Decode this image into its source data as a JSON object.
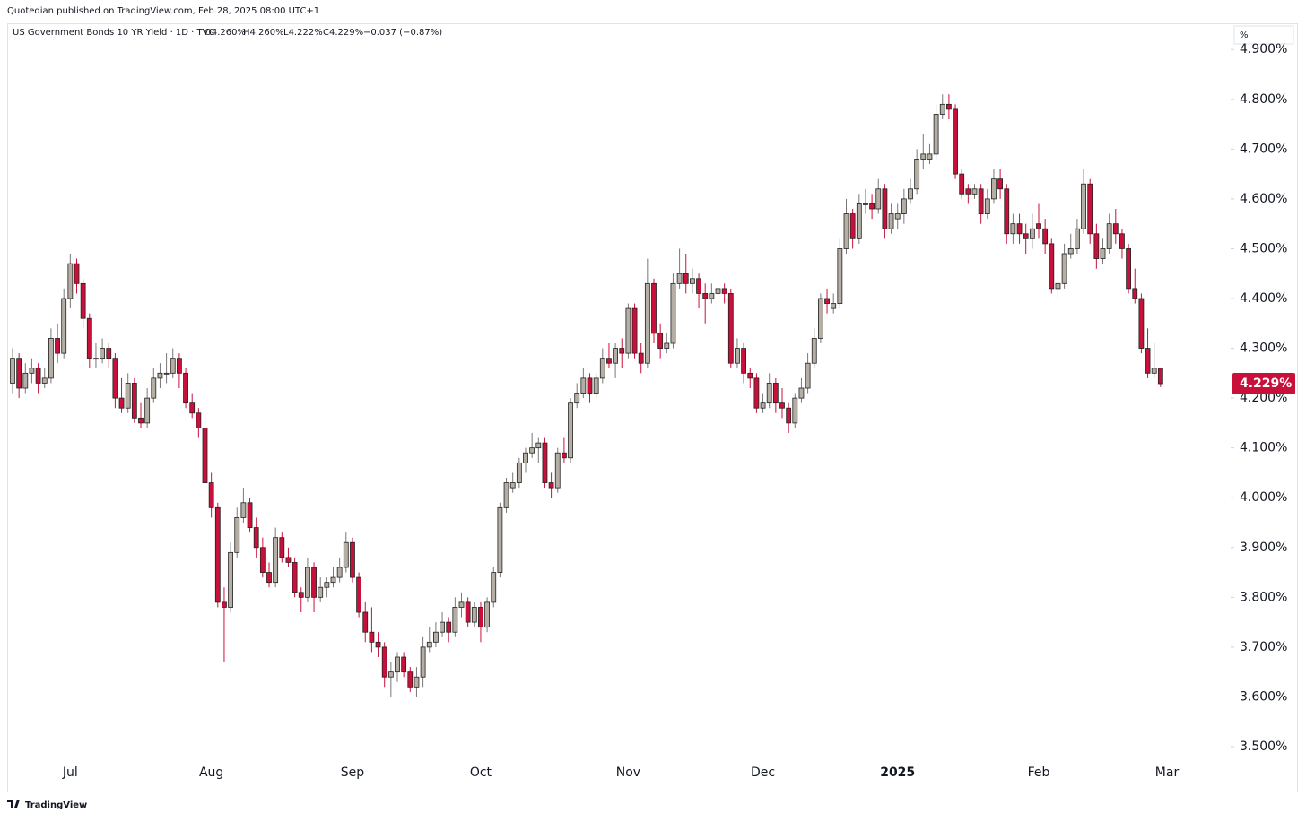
{
  "header": {
    "publisher": "Quotedian published on TradingView.com, Feb 28, 2025 08:00 UTC+1",
    "footer": "TradingView"
  },
  "chart_data": {
    "type": "candlestick",
    "legend": {
      "symbol": "US Government Bonds 10 YR Yield · 1D · TVC",
      "open": "O4.260%",
      "high": "H4.260%",
      "low": "L4.222%",
      "close": "C4.229%",
      "change": "−0.037 (−0.87%)"
    },
    "axis_unit": "%",
    "up_color": "#b5aea4",
    "down_color": "#c8103a",
    "border_color": "#222222",
    "ylim": [
      3.473,
      4.949
    ],
    "yticks": [
      {
        "value": 3.5,
        "label": "3.500%"
      },
      {
        "value": 3.6,
        "label": "3.600%"
      },
      {
        "value": 3.7,
        "label": "3.700%"
      },
      {
        "value": 3.8,
        "label": "3.800%"
      },
      {
        "value": 3.9,
        "label": "3.900%"
      },
      {
        "value": 4.0,
        "label": "4.000%"
      },
      {
        "value": 4.1,
        "label": "4.100%"
      },
      {
        "value": 4.2,
        "label": "4.200%"
      },
      {
        "value": 4.3,
        "label": "4.300%"
      },
      {
        "value": 4.4,
        "label": "4.400%"
      },
      {
        "value": 4.5,
        "label": "4.500%"
      },
      {
        "value": 4.6,
        "label": "4.600%"
      },
      {
        "value": 4.7,
        "label": "4.700%"
      },
      {
        "value": 4.8,
        "label": "4.800%"
      },
      {
        "value": 4.9,
        "label": "4.900%"
      }
    ],
    "last_price": {
      "value": 4.229,
      "label": "4.229%"
    },
    "categories": [
      null,
      null,
      null,
      null,
      null,
      null,
      null,
      null,
      null,
      "Jul",
      null,
      null,
      null,
      null,
      null,
      null,
      null,
      null,
      null,
      null,
      null,
      null,
      null,
      null,
      null,
      null,
      null,
      null,
      null,
      null,
      null,
      "Aug",
      null,
      null,
      null,
      null,
      null,
      null,
      null,
      null,
      null,
      null,
      null,
      null,
      null,
      null,
      null,
      null,
      null,
      null,
      null,
      null,
      null,
      "Sep",
      null,
      null,
      null,
      null,
      null,
      null,
      null,
      null,
      null,
      null,
      null,
      null,
      null,
      null,
      null,
      null,
      null,
      null,
      null,
      "Oct",
      null,
      null,
      null,
      null,
      null,
      null,
      null,
      null,
      null,
      null,
      null,
      null,
      null,
      null,
      null,
      null,
      null,
      null,
      null,
      null,
      null,
      null,
      "Nov",
      null,
      null,
      null,
      null,
      null,
      null,
      null,
      null,
      null,
      null,
      null,
      null,
      null,
      null,
      null,
      null,
      null,
      null,
      null,
      null,
      "Dec",
      null,
      null,
      null,
      null,
      null,
      null,
      null,
      null,
      null,
      null,
      null,
      null,
      null,
      null,
      null,
      null,
      null,
      null,
      null,
      null,
      "2025",
      null,
      null,
      null,
      null,
      null,
      null,
      null,
      null,
      null,
      null,
      null,
      null,
      null,
      null,
      null,
      null,
      null,
      null,
      null,
      null,
      null,
      "Feb",
      null,
      null,
      null,
      null,
      null,
      null,
      null,
      null,
      null,
      null,
      null,
      null,
      null,
      null,
      null,
      null,
      null,
      null,
      null,
      "Mar"
    ],
    "candles": [
      [
        4.23,
        4.3,
        4.21,
        4.28
      ],
      [
        4.28,
        4.29,
        4.2,
        4.22
      ],
      [
        4.22,
        4.27,
        4.21,
        4.25
      ],
      [
        4.25,
        4.28,
        4.23,
        4.26
      ],
      [
        4.26,
        4.27,
        4.21,
        4.23
      ],
      [
        4.23,
        4.26,
        4.22,
        4.24
      ],
      [
        4.24,
        4.34,
        4.23,
        4.32
      ],
      [
        4.32,
        4.35,
        4.27,
        4.29
      ],
      [
        4.29,
        4.42,
        4.28,
        4.4
      ],
      [
        4.4,
        4.49,
        4.38,
        4.47
      ],
      [
        4.47,
        4.48,
        4.41,
        4.43
      ],
      [
        4.43,
        4.44,
        4.34,
        4.36
      ],
      [
        4.36,
        4.37,
        4.26,
        4.28
      ],
      [
        4.28,
        4.31,
        4.26,
        4.28
      ],
      [
        4.28,
        4.32,
        4.27,
        4.3
      ],
      [
        4.3,
        4.31,
        4.26,
        4.28
      ],
      [
        4.28,
        4.29,
        4.18,
        4.2
      ],
      [
        4.2,
        4.24,
        4.17,
        4.18
      ],
      [
        4.18,
        4.25,
        4.17,
        4.23
      ],
      [
        4.23,
        4.24,
        4.15,
        4.16
      ],
      [
        4.16,
        4.19,
        4.14,
        4.15
      ],
      [
        4.15,
        4.22,
        4.14,
        4.2
      ],
      [
        4.2,
        4.26,
        4.19,
        4.24
      ],
      [
        4.24,
        4.27,
        4.22,
        4.25
      ],
      [
        4.25,
        4.29,
        4.23,
        4.25
      ],
      [
        4.25,
        4.3,
        4.24,
        4.28
      ],
      [
        4.28,
        4.29,
        4.22,
        4.25
      ],
      [
        4.25,
        4.26,
        4.18,
        4.19
      ],
      [
        4.19,
        4.21,
        4.16,
        4.17
      ],
      [
        4.17,
        4.18,
        4.12,
        4.14
      ],
      [
        4.14,
        4.15,
        4.02,
        4.03
      ],
      [
        4.03,
        4.05,
        3.96,
        3.98
      ],
      [
        3.98,
        3.99,
        3.78,
        3.79
      ],
      [
        3.79,
        3.82,
        3.67,
        3.78
      ],
      [
        3.78,
        3.91,
        3.77,
        3.89
      ],
      [
        3.89,
        3.98,
        3.88,
        3.96
      ],
      [
        3.96,
        4.02,
        3.95,
        3.99
      ],
      [
        3.99,
        4.0,
        3.93,
        3.94
      ],
      [
        3.94,
        3.96,
        3.88,
        3.9
      ],
      [
        3.9,
        3.92,
        3.84,
        3.85
      ],
      [
        3.85,
        3.87,
        3.82,
        3.83
      ],
      [
        3.83,
        3.94,
        3.82,
        3.92
      ],
      [
        3.92,
        3.93,
        3.87,
        3.88
      ],
      [
        3.88,
        3.9,
        3.86,
        3.87
      ],
      [
        3.87,
        3.88,
        3.8,
        3.81
      ],
      [
        3.81,
        3.82,
        3.77,
        3.8
      ],
      [
        3.8,
        3.88,
        3.79,
        3.86
      ],
      [
        3.86,
        3.87,
        3.77,
        3.8
      ],
      [
        3.8,
        3.84,
        3.79,
        3.82
      ],
      [
        3.82,
        3.84,
        3.8,
        3.83
      ],
      [
        3.83,
        3.86,
        3.82,
        3.84
      ],
      [
        3.84,
        3.88,
        3.83,
        3.86
      ],
      [
        3.86,
        3.93,
        3.85,
        3.91
      ],
      [
        3.91,
        3.92,
        3.83,
        3.84
      ],
      [
        3.84,
        3.85,
        3.76,
        3.77
      ],
      [
        3.77,
        3.79,
        3.71,
        3.73
      ],
      [
        3.73,
        3.78,
        3.69,
        3.71
      ],
      [
        3.71,
        3.73,
        3.68,
        3.7
      ],
      [
        3.7,
        3.71,
        3.62,
        3.64
      ],
      [
        3.64,
        3.67,
        3.6,
        3.65
      ],
      [
        3.65,
        3.69,
        3.63,
        3.68
      ],
      [
        3.68,
        3.69,
        3.64,
        3.65
      ],
      [
        3.65,
        3.66,
        3.61,
        3.62
      ],
      [
        3.62,
        3.66,
        3.6,
        3.64
      ],
      [
        3.64,
        3.72,
        3.62,
        3.7
      ],
      [
        3.7,
        3.74,
        3.69,
        3.71
      ],
      [
        3.71,
        3.75,
        3.7,
        3.73
      ],
      [
        3.73,
        3.77,
        3.72,
        3.75
      ],
      [
        3.75,
        3.76,
        3.71,
        3.73
      ],
      [
        3.73,
        3.8,
        3.72,
        3.78
      ],
      [
        3.78,
        3.81,
        3.76,
        3.79
      ],
      [
        3.79,
        3.8,
        3.74,
        3.75
      ],
      [
        3.75,
        3.79,
        3.74,
        3.78
      ],
      [
        3.78,
        3.79,
        3.71,
        3.74
      ],
      [
        3.74,
        3.8,
        3.73,
        3.79
      ],
      [
        3.79,
        3.86,
        3.78,
        3.85
      ],
      [
        3.85,
        3.99,
        3.84,
        3.98
      ],
      [
        3.98,
        4.04,
        3.97,
        4.03
      ],
      [
        4.02,
        4.05,
        4.01,
        4.03
      ],
      [
        4.03,
        4.08,
        4.02,
        4.07
      ],
      [
        4.07,
        4.1,
        4.05,
        4.09
      ],
      [
        4.09,
        4.13,
        4.08,
        4.1
      ],
      [
        4.1,
        4.12,
        4.07,
        4.11
      ],
      [
        4.11,
        4.12,
        4.02,
        4.03
      ],
      [
        4.03,
        4.05,
        4.0,
        4.02
      ],
      [
        4.02,
        4.1,
        4.01,
        4.09
      ],
      [
        4.09,
        4.12,
        4.07,
        4.08
      ],
      [
        4.08,
        4.2,
        4.07,
        4.19
      ],
      [
        4.19,
        4.23,
        4.18,
        4.21
      ],
      [
        4.21,
        4.26,
        4.2,
        4.24
      ],
      [
        4.24,
        4.25,
        4.19,
        4.21
      ],
      [
        4.21,
        4.25,
        4.2,
        4.24
      ],
      [
        4.24,
        4.3,
        4.23,
        4.28
      ],
      [
        4.28,
        4.31,
        4.26,
        4.27
      ],
      [
        4.27,
        4.31,
        4.24,
        4.3
      ],
      [
        4.3,
        4.32,
        4.26,
        4.29
      ],
      [
        4.29,
        4.39,
        4.28,
        4.38
      ],
      [
        4.38,
        4.39,
        4.28,
        4.29
      ],
      [
        4.29,
        4.31,
        4.25,
        4.27
      ],
      [
        4.27,
        4.48,
        4.26,
        4.43
      ],
      [
        4.43,
        4.44,
        4.31,
        4.33
      ],
      [
        4.33,
        4.35,
        4.28,
        4.3
      ],
      [
        4.3,
        4.33,
        4.29,
        4.31
      ],
      [
        4.31,
        4.45,
        4.3,
        4.43
      ],
      [
        4.43,
        4.5,
        4.42,
        4.45
      ],
      [
        4.45,
        4.49,
        4.41,
        4.43
      ],
      [
        4.43,
        4.46,
        4.41,
        4.44
      ],
      [
        4.44,
        4.45,
        4.38,
        4.41
      ],
      [
        4.41,
        4.43,
        4.35,
        4.4
      ],
      [
        4.4,
        4.43,
        4.39,
        4.41
      ],
      [
        4.41,
        4.44,
        4.4,
        4.42
      ],
      [
        4.42,
        4.43,
        4.39,
        4.41
      ],
      [
        4.41,
        4.42,
        4.26,
        4.27
      ],
      [
        4.27,
        4.32,
        4.26,
        4.3
      ],
      [
        4.3,
        4.31,
        4.23,
        4.25
      ],
      [
        4.25,
        4.26,
        4.22,
        4.24
      ],
      [
        4.24,
        4.25,
        4.17,
        4.18
      ],
      [
        4.18,
        4.21,
        4.17,
        4.19
      ],
      [
        4.19,
        4.25,
        4.18,
        4.23
      ],
      [
        4.23,
        4.24,
        4.17,
        4.19
      ],
      [
        4.19,
        4.22,
        4.16,
        4.18
      ],
      [
        4.18,
        4.19,
        4.13,
        4.15
      ],
      [
        4.15,
        4.21,
        4.14,
        4.2
      ],
      [
        4.2,
        4.24,
        4.19,
        4.22
      ],
      [
        4.22,
        4.29,
        4.21,
        4.27
      ],
      [
        4.27,
        4.34,
        4.26,
        4.32
      ],
      [
        4.32,
        4.41,
        4.31,
        4.4
      ],
      [
        4.4,
        4.42,
        4.37,
        4.39
      ],
      [
        4.38,
        4.41,
        4.37,
        4.39
      ],
      [
        4.39,
        4.52,
        4.38,
        4.5
      ],
      [
        4.5,
        4.6,
        4.49,
        4.57
      ],
      [
        4.57,
        4.58,
        4.5,
        4.52
      ],
      [
        4.52,
        4.61,
        4.51,
        4.59
      ],
      [
        4.59,
        4.62,
        4.57,
        4.59
      ],
      [
        4.59,
        4.61,
        4.56,
        4.58
      ],
      [
        4.58,
        4.64,
        4.57,
        4.62
      ],
      [
        4.62,
        4.63,
        4.52,
        4.54
      ],
      [
        4.54,
        4.59,
        4.53,
        4.57
      ],
      [
        4.56,
        4.59,
        4.54,
        4.57
      ],
      [
        4.57,
        4.62,
        4.55,
        4.6
      ],
      [
        4.6,
        4.64,
        4.59,
        4.62
      ],
      [
        4.62,
        4.7,
        4.61,
        4.68
      ],
      [
        4.68,
        4.73,
        4.66,
        4.69
      ],
      [
        4.68,
        4.71,
        4.67,
        4.69
      ],
      [
        4.69,
        4.79,
        4.68,
        4.77
      ],
      [
        4.77,
        4.81,
        4.76,
        4.79
      ],
      [
        4.79,
        4.81,
        4.76,
        4.78
      ],
      [
        4.78,
        4.79,
        4.64,
        4.65
      ],
      [
        4.65,
        4.66,
        4.6,
        4.61
      ],
      [
        4.62,
        4.63,
        4.59,
        4.61
      ],
      [
        4.61,
        4.63,
        4.6,
        4.62
      ],
      [
        4.62,
        4.63,
        4.55,
        4.57
      ],
      [
        4.57,
        4.62,
        4.56,
        4.6
      ],
      [
        4.6,
        4.66,
        4.59,
        4.64
      ],
      [
        4.64,
        4.66,
        4.6,
        4.62
      ],
      [
        4.62,
        4.63,
        4.51,
        4.53
      ],
      [
        4.53,
        4.57,
        4.51,
        4.55
      ],
      [
        4.55,
        4.57,
        4.51,
        4.53
      ],
      [
        4.53,
        4.55,
        4.49,
        4.52
      ],
      [
        4.52,
        4.57,
        4.5,
        4.54
      ],
      [
        4.55,
        4.59,
        4.52,
        4.54
      ],
      [
        4.54,
        4.56,
        4.49,
        4.51
      ],
      [
        4.51,
        4.52,
        4.41,
        4.42
      ],
      [
        4.42,
        4.45,
        4.4,
        4.43
      ],
      [
        4.43,
        4.51,
        4.42,
        4.49
      ],
      [
        4.49,
        4.53,
        4.48,
        4.5
      ],
      [
        4.5,
        4.56,
        4.49,
        4.54
      ],
      [
        4.54,
        4.66,
        4.53,
        4.63
      ],
      [
        4.63,
        4.64,
        4.51,
        4.53
      ],
      [
        4.53,
        4.55,
        4.46,
        4.48
      ],
      [
        4.48,
        4.52,
        4.47,
        4.5
      ],
      [
        4.5,
        4.57,
        4.49,
        4.55
      ],
      [
        4.55,
        4.58,
        4.51,
        4.53
      ],
      [
        4.53,
        4.54,
        4.48,
        4.5
      ],
      [
        4.5,
        4.51,
        4.41,
        4.42
      ],
      [
        4.42,
        4.46,
        4.39,
        4.4
      ],
      [
        4.4,
        4.41,
        4.29,
        4.3
      ],
      [
        4.3,
        4.34,
        4.24,
        4.25
      ],
      [
        4.25,
        4.31,
        4.24,
        4.26
      ],
      [
        4.26,
        4.26,
        4.222,
        4.229
      ],
      null
    ]
  }
}
